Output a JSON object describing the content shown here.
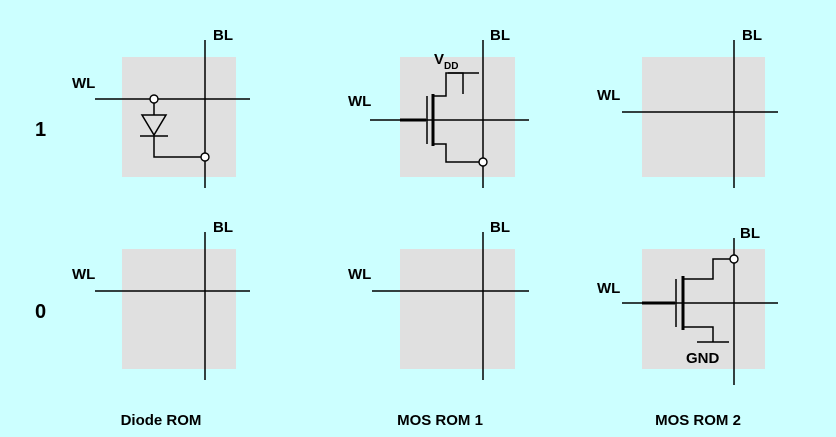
{
  "labels": {
    "bitline": "BL",
    "wordline": "WL",
    "vdd_main": "V",
    "vdd_sub": "DD",
    "gnd": "GND"
  },
  "rows": [
    "1",
    "0"
  ],
  "columns": [
    "Diode ROM",
    "MOS ROM 1",
    "MOS ROM 2"
  ],
  "colors": {
    "background": "#ccffff",
    "cell": "#e0e0e0",
    "line": "#000000"
  }
}
